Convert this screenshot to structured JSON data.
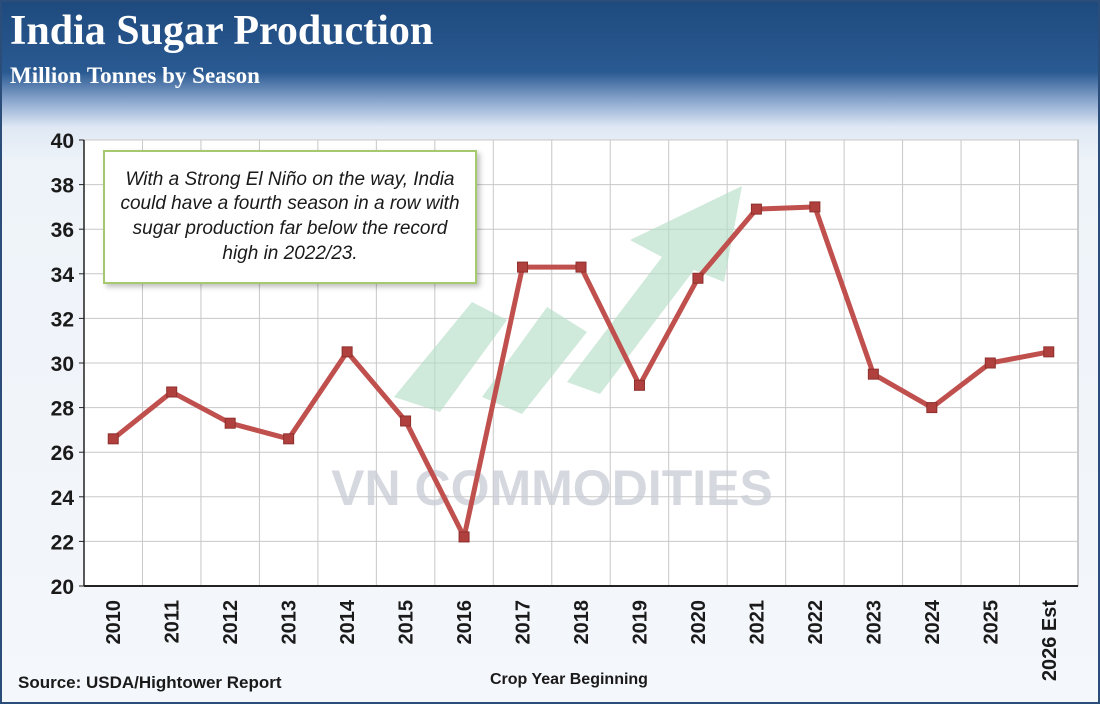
{
  "header": {
    "title": "India Sugar Production",
    "subtitle": "Million Tonnes by Season"
  },
  "annotation": "With a Strong El Niño on the way, India could have a fourth season in a row with sugar production far below the record high in 2022/23.",
  "source": "Source: USDA/Hightower Report",
  "watermark": "VN COMMODITIES",
  "colors": {
    "line": "#c0504d",
    "marker": "#b0403d",
    "header": "#1e4a7e",
    "annotation_border": "#a6c86e",
    "watermark_arrow": "#b3dcc6"
  },
  "chart_data": {
    "type": "line",
    "title": "India Sugar Production",
    "subtitle": "Million Tonnes by Season",
    "xlabel": "Crop Year Beginning",
    "ylabel": "",
    "categories": [
      "2010",
      "2011",
      "2012",
      "2013",
      "2014",
      "2015",
      "2016",
      "2017",
      "2018",
      "2019",
      "2020",
      "2021",
      "2022",
      "2023",
      "2024",
      "2025",
      "2026 Est"
    ],
    "series": [
      {
        "values": [
          26.6,
          28.7,
          27.3,
          26.6,
          30.5,
          27.4,
          22.2,
          34.3,
          34.3,
          29.0,
          33.8,
          36.9,
          37.0,
          29.5,
          28.0,
          30.0,
          30.5
        ]
      }
    ],
    "ylim": [
      20,
      40
    ],
    "yticks": [
      20,
      22,
      24,
      26,
      28,
      30,
      32,
      34,
      36,
      38,
      40
    ],
    "grid": true,
    "legend": "none"
  }
}
